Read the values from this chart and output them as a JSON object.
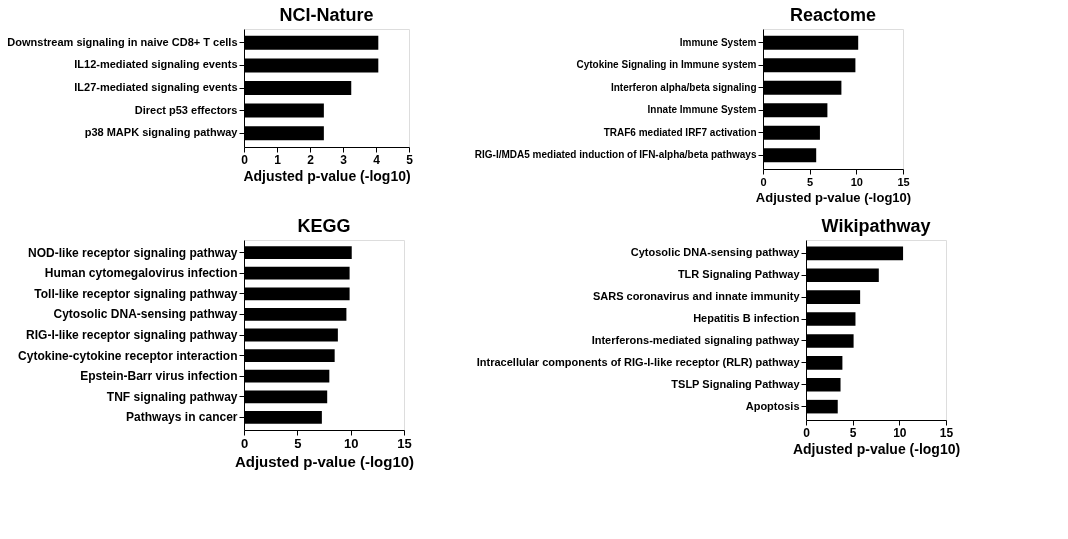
{
  "chart_data": [
    {
      "type": "bar",
      "orientation": "horizontal",
      "title": "NCI-Nature",
      "xlabel": "Adjusted p-value (-log10)",
      "categories": [
        "Downstream signaling in naive CD8+ T cells",
        "IL12-mediated signaling events",
        "IL27-mediated signaling events",
        "Direct p53 effectors",
        "p38 MAPK signaling pathway"
      ],
      "values": [
        4.07,
        4.07,
        3.25,
        2.42,
        2.42
      ],
      "color": "#000000",
      "xlim": [
        0,
        5
      ],
      "xticks": [
        0,
        1,
        2,
        3,
        4,
        5
      ],
      "grid": false
    },
    {
      "type": "bar",
      "orientation": "horizontal",
      "title": "Reactome",
      "xlabel": "Adjusted p-value (-log10)",
      "categories": [
        "Immune System",
        "Cytokine Signaling in Immune system",
        "Interferon alpha/beta signaling",
        "Innate Immune System",
        "TRAF6 mediated IRF7 activation",
        "RIG-I/MDA5 mediated induction of IFN-alpha/beta pathways"
      ],
      "values": [
        10.2,
        9.9,
        8.4,
        6.9,
        6.1,
        5.7
      ],
      "color": "#000000",
      "xlim": [
        0,
        15
      ],
      "xticks": [
        0,
        5,
        10,
        15
      ],
      "grid": false
    },
    {
      "type": "bar",
      "orientation": "horizontal",
      "title": "KEGG",
      "xlabel": "Adjusted p-value (-log10)",
      "categories": [
        "NOD-like receptor signaling pathway",
        "Human cytomegalovirus infection",
        "Toll-like receptor signaling pathway",
        "Cytosolic DNA-sensing pathway",
        "RIG-I-like receptor signaling pathway",
        "Cytokine-cytokine receptor interaction",
        "Epstein-Barr virus infection",
        "TNF signaling pathway",
        "Pathways in cancer"
      ],
      "values": [
        10.1,
        9.9,
        9.9,
        9.6,
        8.8,
        8.5,
        8.0,
        7.8,
        7.3
      ],
      "color": "#000000",
      "xlim": [
        0,
        15
      ],
      "xticks": [
        0,
        5,
        10,
        15
      ],
      "grid": false
    },
    {
      "type": "bar",
      "orientation": "horizontal",
      "title": "Wikipathway",
      "xlabel": "Adjusted p-value (-log10)",
      "categories": [
        "Cytosolic DNA-sensing pathway",
        "TLR Signaling Pathway",
        "SARS coronavirus and innate immunity",
        "Hepatitis B infection",
        "Interferons-mediated signaling pathway",
        "Intracellular components of RIG-I-like receptor (RLR) pathway",
        "TSLP Signaling Pathway",
        "Apoptosis"
      ],
      "values": [
        10.4,
        7.8,
        5.8,
        5.3,
        5.1,
        3.9,
        3.7,
        3.4
      ],
      "color": "#000000",
      "xlim": [
        0,
        15
      ],
      "xticks": [
        0,
        5,
        10,
        15
      ],
      "grid": false
    }
  ]
}
